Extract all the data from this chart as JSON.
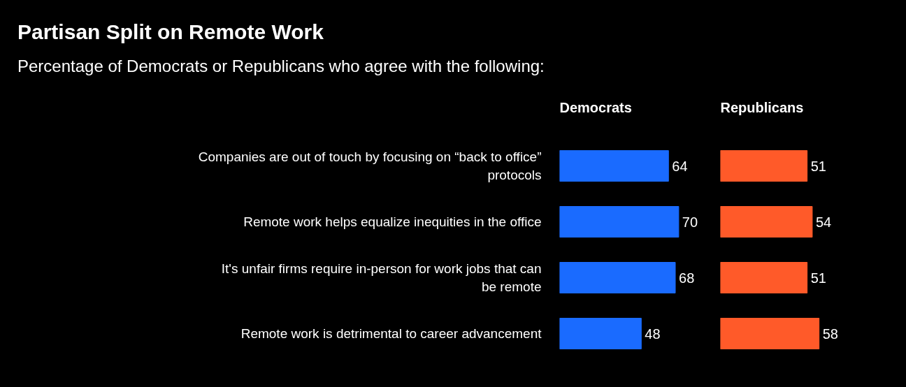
{
  "chart_data": [
    {
      "type": "bar",
      "orientation": "horizontal",
      "title": "Partisan Split on Remote Work",
      "subtitle": "Percentage of Democrats or Republicans who agree with the following:",
      "categories": [
        "Companies are out of touch by focusing on “back to office” protocols",
        "Remote work helps equalize inequities in the office",
        "It's unfair firms require in-person for work jobs that can be remote",
        "Remote work is detrimental to career advancement"
      ],
      "series": [
        {
          "name": "Democrats",
          "color": "#1a6bff",
          "values": [
            64,
            70,
            68,
            48
          ]
        }
      ],
      "data_labels": true
    },
    {
      "type": "bar",
      "orientation": "horizontal",
      "tick_labels": false,
      "categories": [
        "Companies are out of touch by focusing on “back to office” protocols",
        "Remote work helps equalize inequities in the office",
        "It's unfair firms require in-person for work jobs that can be remote",
        "Remote work is detrimental to career advancement"
      ],
      "series": [
        {
          "name": "Republicans",
          "color": "#ff5a29",
          "values": [
            51,
            54,
            51,
            58
          ]
        }
      ],
      "data_labels": true
    }
  ]
}
